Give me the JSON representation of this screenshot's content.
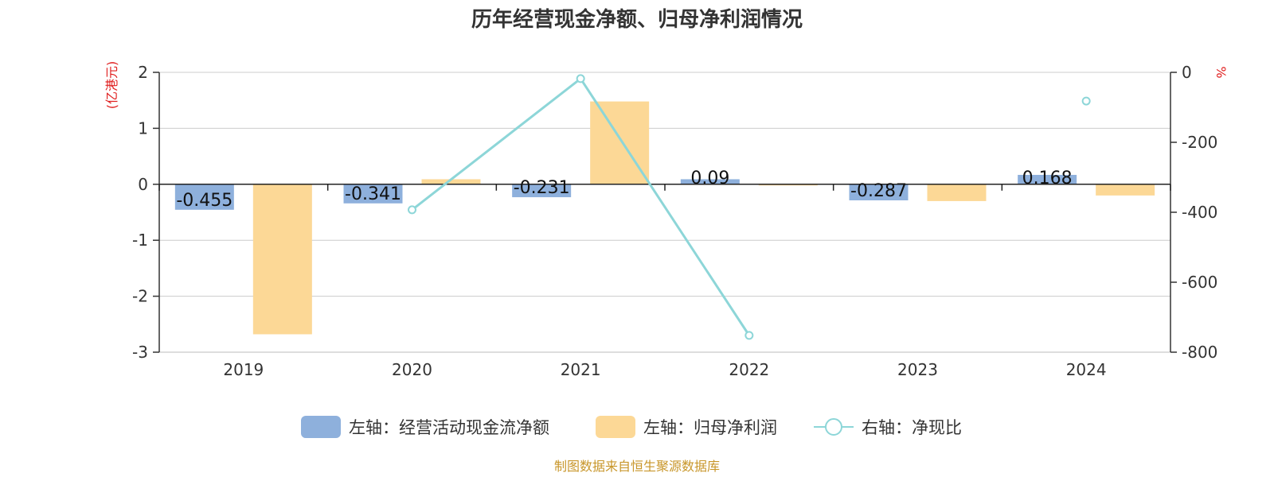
{
  "chart_data": {
    "type": "bar",
    "title": "历年经营现金净额、归母净利润情况",
    "left_axis_unit": "(亿港元)",
    "right_axis_unit": "%",
    "categories": [
      "2019",
      "2020",
      "2021",
      "2022",
      "2023",
      "2024"
    ],
    "left_ylim": [
      -3,
      2
    ],
    "left_ticks": [
      "2",
      "1",
      "0",
      "-1",
      "-2",
      "-3"
    ],
    "right_ylim": [
      -800,
      0
    ],
    "right_ticks": [
      "0",
      "-200",
      "-400",
      "-600",
      "-800"
    ],
    "grid": true,
    "legend_position": "bottom",
    "series": [
      {
        "name": "左轴：经营活动现金流净额",
        "type": "bar",
        "axis": "left",
        "color": "#8eb0dc",
        "values": [
          -0.455,
          -0.341,
          -0.231,
          0.09,
          -0.287,
          0.168
        ],
        "labels": [
          "-0.455",
          "-0.341",
          "-0.231",
          "0.09",
          "-0.287",
          "0.168"
        ]
      },
      {
        "name": "左轴：归母净利润",
        "type": "bar",
        "axis": "left",
        "color": "#fcd896",
        "values": [
          -2.68,
          0.09,
          1.48,
          0.0,
          -0.3,
          -0.2
        ]
      },
      {
        "name": "右轴：净现比",
        "type": "line",
        "axis": "right",
        "color": "#8dd6d8",
        "values": [
          null,
          -393,
          -18,
          -752,
          null,
          -82
        ]
      }
    ]
  },
  "footer": {
    "source": "制图数据来自恒生聚源数据库"
  }
}
